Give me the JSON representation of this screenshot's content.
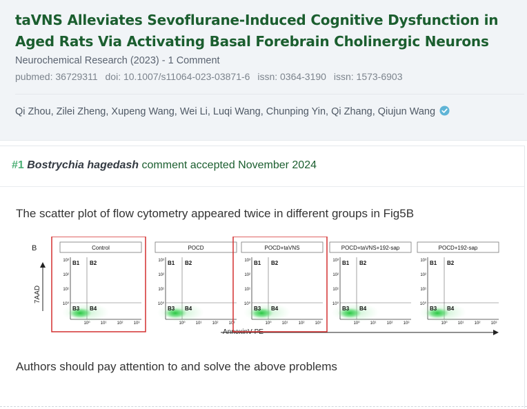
{
  "paper": {
    "title": "taVNS Alleviates Sevoflurane-Induced Cognitive Dysfunction in Aged Rats Via Activating Basal Forebrain Cholinergic Neurons",
    "journal_line": "Neurochemical Research (2023) - 1 Comment",
    "ids": [
      "pubmed: 36729311",
      "doi: 10.1007/s11064-023-03871-6",
      "issn: 0364-3190",
      "issn: 1573-6903"
    ],
    "authors": "Qi Zhou, Zilei Zheng, Xupeng Wang, Wei Li, Luqi Wang, Chunping Yin, Qi Zhang, Qiujun Wang",
    "verified_icon": "check-badge-icon",
    "accent": "#1b5e2f"
  },
  "comment": {
    "number": "#1",
    "author": "Bostrychia hagedash",
    "status": "comment accepted November 2024",
    "paragraph1": "The scatter plot of flow cytometry appeared twice in different groups in Fig5B",
    "paragraph2": "Authors should pay attention to and solve the above problems"
  },
  "figure": {
    "panel_letter": "B",
    "y_label": "7AAD",
    "x_label": "AnnexinV-PE",
    "groups": [
      "Control",
      "POCD",
      "POCD+taVNS",
      "POCD+taVNS+192-sap",
      "POCD+192-sap"
    ],
    "highlighted": [
      "Control",
      "POCD+taVNS"
    ],
    "highlight_color": "#d32f2f",
    "quadrants": [
      "B1",
      "B2",
      "B3",
      "B4"
    ],
    "y_ticks": [
      "10³",
      "10²",
      "10¹",
      "10⁰"
    ],
    "x_ticks": [
      "10⁰",
      "10¹",
      "10²",
      "10³"
    ]
  }
}
